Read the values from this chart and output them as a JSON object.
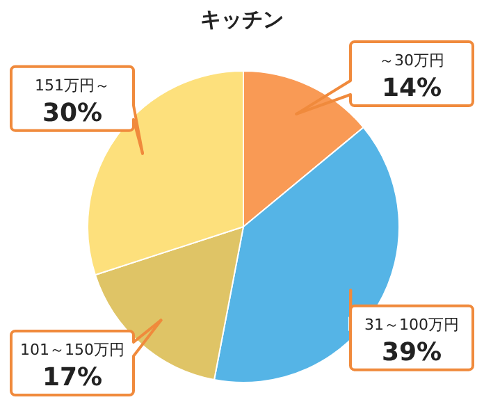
{
  "chart_data": {
    "type": "pie",
    "title": "キッチン",
    "categories": [
      "～30万円",
      "31～100万円",
      "101～150万円",
      "151万円～"
    ],
    "values": [
      14,
      39,
      17,
      30
    ],
    "colors": [
      "#f99a55",
      "#55b4e6",
      "#dfc466",
      "#fde07c"
    ],
    "value_labels": [
      "14%",
      "39%",
      "17%",
      "30%"
    ]
  }
}
